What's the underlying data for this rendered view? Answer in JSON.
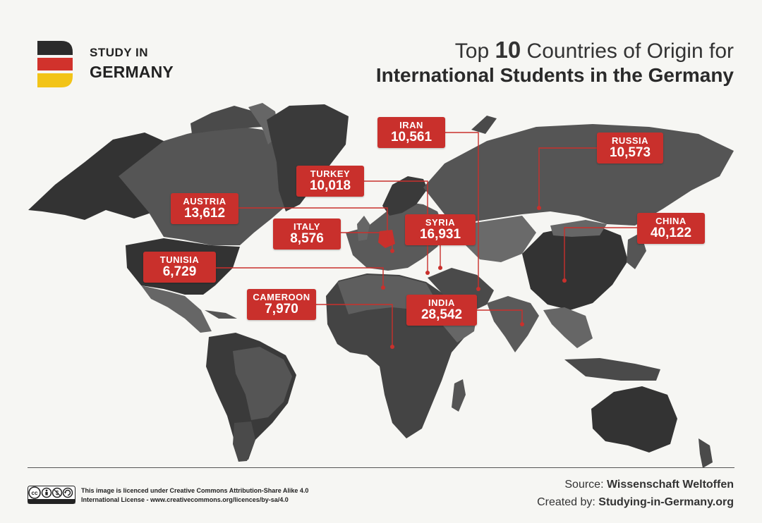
{
  "logo": {
    "line1": "STUDY IN",
    "line2": "GERMANY",
    "flag_colors": [
      "#2b2b2b",
      "#d1322c",
      "#f2c418"
    ]
  },
  "title": {
    "prefix": "Top ",
    "number": "10",
    "suffix": " Countries of Origin for",
    "line2": "International Students in the Germany"
  },
  "colors": {
    "accent": "#c9302c",
    "background": "#f6f6f3",
    "land_dark": "#333333",
    "land_mid": "#555555",
    "land_light": "#7a7a7a"
  },
  "chart_data": {
    "type": "map",
    "countries": [
      {
        "name": "CHINA",
        "value": "40,122"
      },
      {
        "name": "INDIA",
        "value": "28,542"
      },
      {
        "name": "SYRIA",
        "value": "16,931"
      },
      {
        "name": "AUSTRIA",
        "value": "13,612"
      },
      {
        "name": "RUSSIA",
        "value": "10,573"
      },
      {
        "name": "IRAN",
        "value": "10,561"
      },
      {
        "name": "TURKEY",
        "value": "10,018"
      },
      {
        "name": "ITALY",
        "value": "8,576"
      },
      {
        "name": "CAMEROON",
        "value": "7,970"
      },
      {
        "name": "TUNISIA",
        "value": "6,729"
      }
    ]
  },
  "footer": {
    "cc_icons": [
      "cc-icon",
      "by-icon",
      "nc-icon",
      "sa-icon"
    ],
    "license_line1": "This image is licenced under Creative Commons Attribution-Share Alike 4.0",
    "license_line2": "International License - www.creativecommons.org/licences/by-sa/4.0",
    "source_label": "Source: ",
    "source_value": "Wissenschaft Weltoffen",
    "created_label": "Created by: ",
    "created_value": "Studying-in-Germany.org"
  }
}
